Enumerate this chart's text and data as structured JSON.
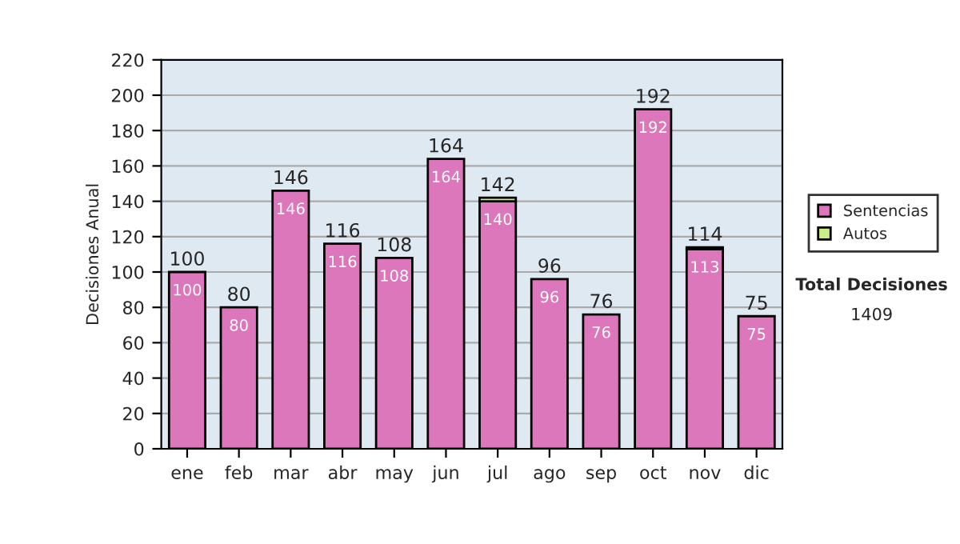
{
  "chart_data": {
    "type": "bar",
    "stacked": true,
    "ylabel": "Decisiones Anual",
    "categories": [
      "ene",
      "feb",
      "mar",
      "abr",
      "may",
      "jun",
      "jul",
      "ago",
      "sep",
      "oct",
      "nov",
      "dic"
    ],
    "series": [
      {
        "name": "Sentencias",
        "color": "#dd77bb",
        "values": [
          100,
          80,
          146,
          116,
          108,
          164,
          140,
          96,
          76,
          192,
          113,
          75
        ],
        "value_labels": [
          "100",
          "80",
          "146",
          "116",
          "108",
          "164",
          "140",
          "96",
          "76",
          "192",
          "113",
          "75"
        ]
      },
      {
        "name": "Autos",
        "color": "#ccee88",
        "values": [
          0,
          0,
          0,
          0,
          0,
          0,
          2,
          0,
          0,
          0,
          1,
          0
        ]
      }
    ],
    "totals": [
      "100",
      "80",
      "146",
      "116",
      "108",
      "164",
      "142",
      "96",
      "76",
      "192",
      "114",
      "75"
    ],
    "ylim": [
      0,
      220
    ],
    "yticks": [
      0,
      20,
      40,
      60,
      80,
      100,
      120,
      140,
      160,
      180,
      200,
      220
    ],
    "grid": "y",
    "legend": "right",
    "annotations": [
      "Total Decisiones",
      "1409"
    ]
  }
}
